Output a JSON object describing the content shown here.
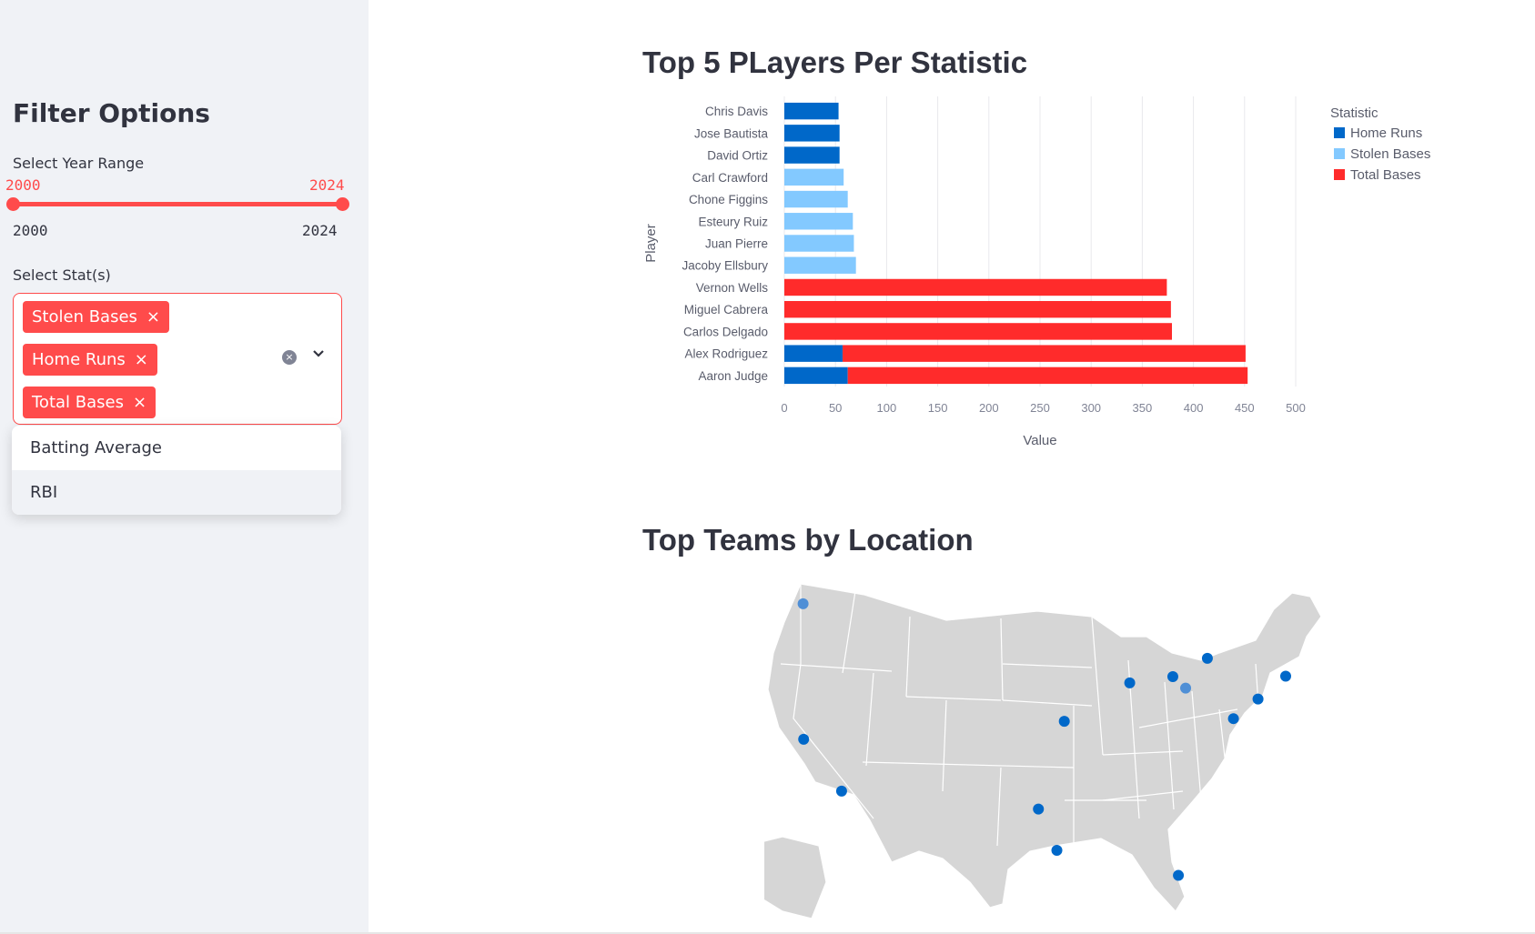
{
  "sidebar": {
    "title": "Filter Options",
    "year_range": {
      "label": "Select Year Range",
      "min_value": "2000",
      "max_value": "2024",
      "tick_min": "2000",
      "tick_max": "2024"
    },
    "stats": {
      "label": "Select Stat(s)",
      "selected": [
        "Stolen Bases",
        "Home Runs",
        "Total Bases"
      ],
      "remove_glyph": "×",
      "clear_glyph": "×",
      "options": [
        "Batting Average",
        "RBI"
      ]
    }
  },
  "main": {
    "chart_title": "Top 5 PLayers Per Statistic",
    "map_title": "Top Teams by Location"
  },
  "colors": {
    "accent": "#ff4b4b",
    "home_runs": "#0068c9",
    "stolen_bases": "#83c9ff",
    "total_bases": "#ff2b2b",
    "map_land": "#d6d6d6",
    "map_dot": "#0068c9"
  },
  "chart_data": {
    "type": "bar",
    "orientation": "horizontal",
    "stacked": true,
    "xlabel": "Value",
    "ylabel": "Player",
    "xlim": [
      0,
      500
    ],
    "xticks": [
      0,
      50,
      100,
      150,
      200,
      250,
      300,
      350,
      400,
      450,
      500
    ],
    "grid": true,
    "legend": {
      "title": "Statistic",
      "placement": "top-right"
    },
    "categories": [
      "Chris Davis",
      "Jose Bautista",
      "David Ortiz",
      "Carl Crawford",
      "Chone Figgins",
      "Esteury Ruiz",
      "Juan Pierre",
      "Jacoby Ellsbury",
      "Vernon Wells",
      "Miguel Cabrera",
      "Carlos Delgado",
      "Alex Rodriguez",
      "Aaron Judge"
    ],
    "series": [
      {
        "name": "Home Runs",
        "values": [
          53,
          54,
          54,
          null,
          null,
          null,
          null,
          null,
          null,
          null,
          null,
          57,
          62
        ]
      },
      {
        "name": "Stolen Bases",
        "values": [
          null,
          null,
          null,
          58,
          62,
          67,
          68,
          70,
          null,
          null,
          null,
          null,
          null
        ]
      },
      {
        "name": "Total Bases",
        "values": [
          null,
          null,
          null,
          null,
          null,
          null,
          null,
          null,
          374,
          378,
          379,
          394,
          391
        ]
      }
    ]
  },
  "map_data": {
    "dots": [
      {
        "lon": -122.33,
        "lat": 47.6,
        "tone": "light"
      },
      {
        "lon": -122.27,
        "lat": 37.8,
        "tone": "dark"
      },
      {
        "lon": -118.24,
        "lat": 34.05,
        "tone": "dark"
      },
      {
        "lon": -94.58,
        "lat": 39.1,
        "tone": "dark"
      },
      {
        "lon": -97.33,
        "lat": 32.75,
        "tone": "dark"
      },
      {
        "lon": -95.37,
        "lat": 29.76,
        "tone": "dark"
      },
      {
        "lon": -87.63,
        "lat": 41.88,
        "tone": "dark"
      },
      {
        "lon": -83.05,
        "lat": 42.33,
        "tone": "dark"
      },
      {
        "lon": -81.69,
        "lat": 41.5,
        "tone": "light"
      },
      {
        "lon": -79.38,
        "lat": 43.65,
        "tone": "dark"
      },
      {
        "lon": -74.0,
        "lat": 40.71,
        "tone": "dark"
      },
      {
        "lon": -71.06,
        "lat": 42.36,
        "tone": "dark"
      },
      {
        "lon": -76.61,
        "lat": 39.29,
        "tone": "dark"
      },
      {
        "lon": -82.46,
        "lat": 27.95,
        "tone": "dark"
      }
    ]
  }
}
